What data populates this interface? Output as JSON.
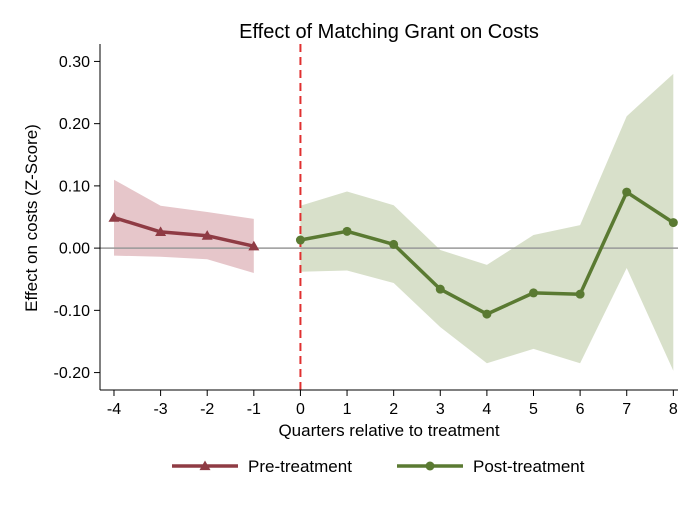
{
  "chart_data": {
    "type": "line",
    "title": "Effect of Matching Grant on Costs",
    "xlabel": "Quarters relative to treatment",
    "ylabel": "Effect on costs (Z-Score)",
    "xlim": [
      -4.3,
      8.1
    ],
    "ylim": [
      -0.228,
      0.328
    ],
    "x_ticks": [
      -4,
      -3,
      -2,
      -1,
      0,
      1,
      2,
      3,
      4,
      5,
      6,
      7,
      8
    ],
    "x_tick_labels": [
      "-4",
      "-3",
      "-2",
      "-1",
      "0",
      "1",
      "2",
      "3",
      "4",
      "5",
      "6",
      "7",
      "8"
    ],
    "y_ticks": [
      0.3,
      0.2,
      0.1,
      0.0,
      -0.1,
      -0.2
    ],
    "y_tick_labels": [
      "0.30",
      "0.20",
      "0.10",
      "0.00",
      "-0.10",
      "-0.20"
    ],
    "reference_lines": {
      "horizontal_y": 0,
      "horizontal_color": "#999999",
      "vertical_x": 0,
      "vertical_color": "#e03030",
      "vertical_style": "dashed"
    },
    "grid": false,
    "legend_position": "bottom",
    "series": [
      {
        "name": "Pre-treatment",
        "color": "#8f3b44",
        "band_color": "#e6c6ca",
        "marker": "triangle",
        "x": [
          -4,
          -3,
          -2,
          -1
        ],
        "values": [
          0.049,
          0.026,
          0.02,
          0.003
        ],
        "ci_lower": [
          -0.012,
          -0.014,
          -0.018,
          -0.04
        ],
        "ci_upper": [
          0.11,
          0.068,
          0.058,
          0.047
        ]
      },
      {
        "name": "Post-treatment",
        "color": "#5a7a32",
        "band_color": "#d8e0ca",
        "marker": "circle",
        "x": [
          0,
          1,
          2,
          3,
          4,
          5,
          6,
          7,
          8
        ],
        "values": [
          0.013,
          0.027,
          0.006,
          -0.066,
          -0.106,
          -0.072,
          -0.074,
          0.09,
          0.041
        ],
        "ci_lower": [
          -0.038,
          -0.036,
          -0.056,
          -0.127,
          -0.185,
          -0.162,
          -0.185,
          -0.032,
          -0.197
        ],
        "ci_upper": [
          0.068,
          0.091,
          0.069,
          -0.003,
          -0.027,
          0.021,
          0.037,
          0.212,
          0.28
        ]
      }
    ]
  }
}
